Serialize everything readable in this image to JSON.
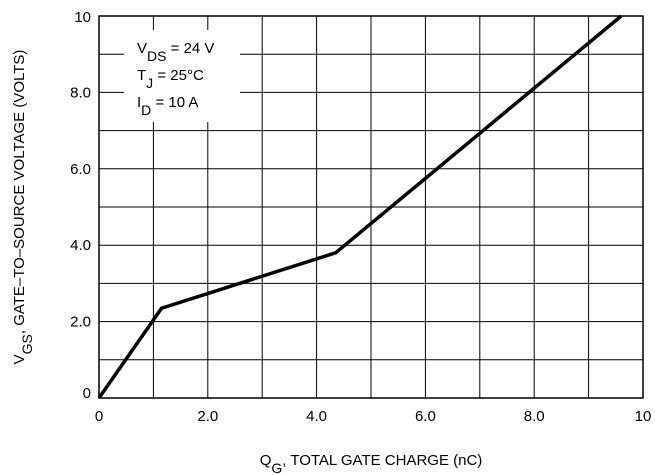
{
  "chart_data": {
    "type": "line",
    "xlabel": {
      "main": "Q",
      "sub": "G",
      "rest": ", TOTAL GATE CHARGE (nC)"
    },
    "ylabel": {
      "main": "V",
      "sub": "GS",
      "rest": ", GATE–TO–SOURCE VOLTAGE (VOLTS)"
    },
    "xlim": [
      0,
      10
    ],
    "ylim": [
      0,
      10
    ],
    "x_ticks": [
      0,
      1,
      2,
      3,
      4,
      5,
      6,
      7,
      8,
      9,
      10
    ],
    "y_ticks": [
      0,
      1,
      2,
      3,
      4,
      5,
      6,
      7,
      8,
      9,
      10
    ],
    "x_tick_labels": [
      {
        "value": 0,
        "label": "0"
      },
      {
        "value": 2,
        "label": "2.0"
      },
      {
        "value": 4,
        "label": "4.0"
      },
      {
        "value": 6,
        "label": "6.0"
      },
      {
        "value": 8,
        "label": "8.0"
      },
      {
        "value": 10,
        "label": "10"
      }
    ],
    "y_tick_labels": [
      {
        "value": 0,
        "label": "0"
      },
      {
        "value": 2,
        "label": "2.0"
      },
      {
        "value": 4,
        "label": "4.0"
      },
      {
        "value": 6,
        "label": "6.0"
      },
      {
        "value": 8,
        "label": "8.0"
      },
      {
        "value": 10,
        "label": "10"
      }
    ],
    "grid": true,
    "series": [
      {
        "x": [
          0,
          1.15,
          4.35,
          9.6
        ],
        "y": [
          0,
          2.35,
          3.8,
          10
        ]
      }
    ],
    "conditions": [
      {
        "main": "V",
        "sub": "DS",
        "rest": " = 24 V"
      },
      {
        "main": "T",
        "sub": "J",
        "rest": " = 25°C"
      },
      {
        "main": "I",
        "sub": "D",
        "rest": " = 10 A"
      }
    ],
    "line_color": "#000000",
    "grid_color": "#000000"
  }
}
